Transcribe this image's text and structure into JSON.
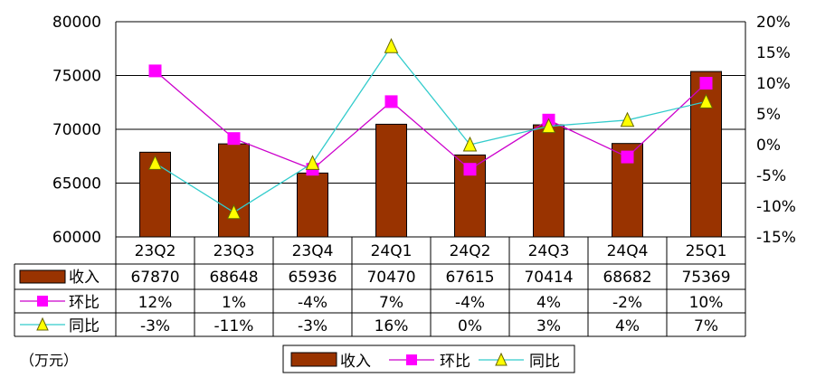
{
  "chart_data": {
    "type": "bar+line",
    "categories": [
      "23Q2",
      "23Q3",
      "23Q4",
      "24Q1",
      "24Q2",
      "24Q3",
      "24Q4",
      "25Q1"
    ],
    "y_left": {
      "range": [
        60000,
        80000
      ],
      "ticks": [
        "60000",
        "65000",
        "70000",
        "75000",
        "80000"
      ]
    },
    "y_right": {
      "range": [
        -15,
        20
      ],
      "ticks": [
        "-15%",
        "-10%",
        "-5%",
        "0%",
        "5%",
        "10%",
        "15%",
        "20%"
      ]
    },
    "series": [
      {
        "name": "收入",
        "kind": "bar",
        "axis": "left",
        "color": "#993300",
        "values": [
          67870,
          68648,
          65936,
          70470,
          67615,
          70414,
          68682,
          75369
        ],
        "labels": [
          "67870",
          "68648",
          "65936",
          "70470",
          "67615",
          "70414",
          "68682",
          "75369"
        ]
      },
      {
        "name": "环比",
        "kind": "line",
        "axis": "right",
        "color": "#cc00cc",
        "marker": "square",
        "marker_color": "#ff00ff",
        "values": [
          12,
          1,
          -4,
          7,
          -4,
          4,
          -2,
          10
        ],
        "labels": [
          "12%",
          "1%",
          "-4%",
          "7%",
          "-4%",
          "4%",
          "-2%",
          "10%"
        ]
      },
      {
        "name": "同比",
        "kind": "line",
        "axis": "right",
        "color": "#33cccc",
        "marker": "triangle",
        "marker_color": "#ffff00",
        "values": [
          -3,
          -11,
          -3,
          16,
          0,
          3,
          4,
          7
        ],
        "labels": [
          "-3%",
          "-11%",
          "-3%",
          "16%",
          "0%",
          "3%",
          "4%",
          "7%"
        ]
      }
    ],
    "unit_note": "（万元）",
    "legend": [
      "收入",
      "环比",
      "同比"
    ],
    "legend_position": "bottom",
    "grid": true
  }
}
